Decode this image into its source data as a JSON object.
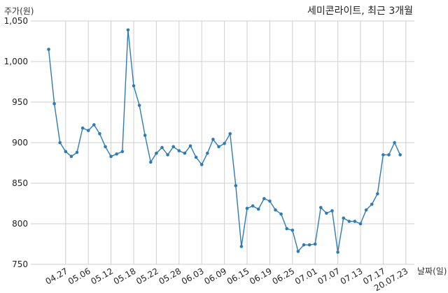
{
  "chart_data": {
    "type": "line",
    "title": "세미콘라이트, 최근 3개월",
    "ylabel": "주가(원)",
    "xlabel": "날짜(일)",
    "ylim": [
      750,
      1050
    ],
    "yticks": [
      750,
      800,
      850,
      900,
      950,
      1000,
      1050
    ],
    "ytick_labels": [
      "750",
      "800",
      "850",
      "900",
      "950",
      "1,000",
      "1,050"
    ],
    "xtick_labels": [
      "04.27",
      "05.06",
      "05.12",
      "05.18",
      "05.22",
      "05.28",
      "06.03",
      "06.09",
      "06.15",
      "06.19",
      "06.25",
      "07.01",
      "07.07",
      "07.13",
      "07.17",
      "20.07.23"
    ],
    "xtick_index": [
      3,
      7,
      11,
      15,
      19,
      23,
      27,
      31,
      35,
      39,
      43,
      47,
      51,
      55,
      59,
      63
    ],
    "grid": true,
    "series": [
      {
        "values": [
          1015,
          948,
          900,
          889,
          883,
          888,
          918,
          915,
          922,
          911,
          895,
          883,
          886,
          889,
          1039,
          970,
          946,
          909,
          876,
          887,
          894,
          885,
          895,
          890,
          887,
          896,
          882,
          873,
          887,
          904,
          895,
          899,
          911,
          847,
          772,
          819,
          822,
          818,
          831,
          828,
          817,
          812,
          794,
          792,
          766,
          774,
          774,
          775,
          820,
          813,
          816,
          765,
          807,
          803,
          803,
          800,
          817,
          824,
          837,
          885,
          885,
          900,
          885
        ]
      }
    ]
  }
}
